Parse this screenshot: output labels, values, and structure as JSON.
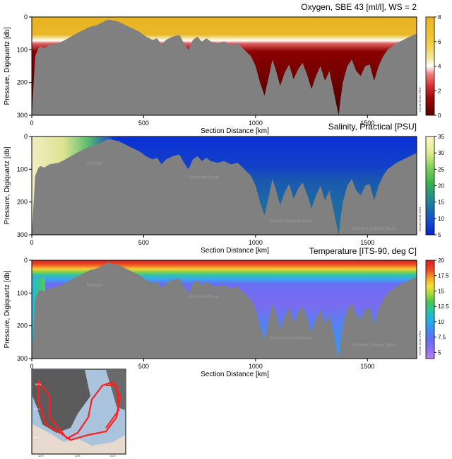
{
  "colors": {
    "terrain": "#808080",
    "axis": "#000000",
    "track": "#ff1e1e",
    "map_sea": "#a9c4dc",
    "map_land": "#e8d9cf"
  },
  "chart_data": [
    {
      "type": "heatmap",
      "variable": "oxygen",
      "title": "Oxygen, SBE 43 [ml/l], WS = 2",
      "xlabel": "Section Distance [km]",
      "ylabel": "Pressure, Digiquartz [db]",
      "xlim": [
        0,
        1720
      ],
      "ylim": [
        0,
        300
      ],
      "xticks": [
        0,
        500,
        1000,
        1500
      ],
      "yticks": [
        0,
        100,
        200,
        300
      ],
      "colorbar_ticks": [
        0,
        2,
        4,
        6,
        8
      ],
      "clim": [
        0,
        8
      ],
      "credit": "Ocean Data View",
      "basin_labels": []
    },
    {
      "type": "heatmap",
      "variable": "salinity",
      "title": "Salinity, Practical [PSU]",
      "xlabel": "Section Distance [km]",
      "ylabel": "Pressure, Digiquartz [db]",
      "xlim": [
        0,
        1720
      ],
      "ylim": [
        0,
        300
      ],
      "xticks": [
        0,
        500,
        1000,
        1500
      ],
      "yticks": [
        0,
        100,
        200,
        300
      ],
      "colorbar_ticks": [
        5,
        10,
        15,
        20,
        25,
        30,
        35
      ],
      "clim": [
        5,
        35
      ],
      "credit": "Ocean Data View",
      "basin_labels": [
        {
          "text": "Kattegat",
          "x": 280,
          "depth": 85
        },
        {
          "text": "Bornholm Basin",
          "x": 770,
          "depth": 128
        },
        {
          "text": "Eastern Gotland Basin",
          "x": 1160,
          "depth": 262
        },
        {
          "text": "Western Gotland Basin",
          "x": 1530,
          "depth": 285
        }
      ]
    },
    {
      "type": "heatmap",
      "variable": "temperature",
      "title": "Temperature [ITS-90, deg C]",
      "xlabel": "Section Distance [km]",
      "ylabel": "Pressure, Digiquartz [db]",
      "xlim": [
        0,
        1720
      ],
      "ylim": [
        0,
        300
      ],
      "xticks": [
        0,
        500,
        1000,
        1500
      ],
      "yticks": [
        0,
        100,
        200,
        300
      ],
      "colorbar_ticks": [
        5,
        7.5,
        10,
        12.5,
        15,
        17.5,
        20
      ],
      "clim": [
        4,
        20
      ],
      "credit": "Ocean Data View",
      "basin_labels": [
        {
          "text": "Kattegat",
          "x": 280,
          "depth": 80
        },
        {
          "text": "Bornholm Basin",
          "x": 770,
          "depth": 115
        },
        {
          "text": "Eastern Gotland Basin",
          "x": 1160,
          "depth": 242
        },
        {
          "text": "Western Gotland Basin",
          "x": 1530,
          "depth": 262
        }
      ]
    }
  ],
  "bathymetry": {
    "distance_km": [
      0,
      15,
      30,
      40,
      55,
      80,
      120,
      150,
      175,
      200,
      230,
      260,
      290,
      320,
      340,
      360,
      390,
      420,
      450,
      480,
      510,
      540,
      560,
      580,
      600,
      630,
      660,
      680,
      700,
      720,
      740,
      760,
      780,
      800,
      830,
      860,
      890,
      920,
      950,
      980,
      1000,
      1020,
      1040,
      1060,
      1075,
      1090,
      1110,
      1130,
      1150,
      1170,
      1190,
      1210,
      1230,
      1250,
      1270,
      1290,
      1310,
      1330,
      1350,
      1365,
      1372,
      1378,
      1390,
      1410,
      1430,
      1450,
      1470,
      1490,
      1510,
      1530,
      1550,
      1570,
      1590,
      1610,
      1630,
      1660,
      1690,
      1720
    ],
    "depth_db": [
      300,
      120,
      95,
      90,
      95,
      85,
      80,
      70,
      60,
      50,
      40,
      30,
      25,
      15,
      8,
      10,
      15,
      25,
      35,
      45,
      60,
      70,
      65,
      85,
      70,
      60,
      55,
      80,
      100,
      70,
      60,
      75,
      65,
      75,
      80,
      75,
      85,
      80,
      100,
      120,
      150,
      200,
      240,
      180,
      130,
      160,
      210,
      170,
      145,
      190,
      160,
      140,
      175,
      220,
      180,
      150,
      195,
      165,
      230,
      280,
      300,
      260,
      200,
      150,
      130,
      165,
      180,
      150,
      145,
      195,
      150,
      120,
      100,
      90,
      80,
      70,
      60,
      50
    ],
    "unit_x": "km",
    "unit_y": "db"
  },
  "map_inset": {
    "description_labels": [
      "59°N",
      "57°N",
      "55°N",
      "10°E",
      "15°E",
      "20°E"
    ]
  }
}
